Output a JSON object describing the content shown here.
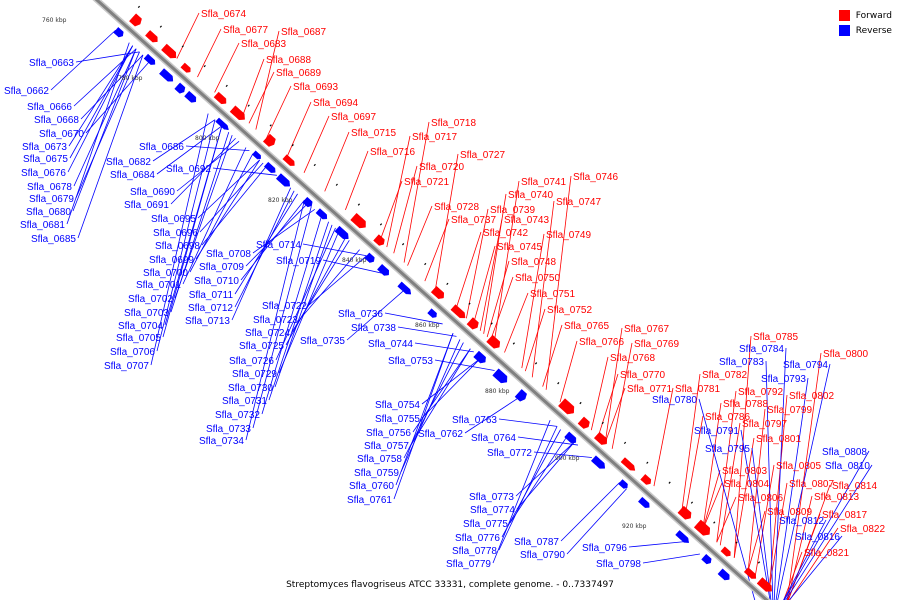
{
  "caption": "Streptomyces flavogriseus ATCC 33331, complete genome. - 0..7337497",
  "legend": [
    {
      "label": "Forward",
      "color": "#ff0000"
    },
    {
      "label": "Reverse",
      "color": "#0000ff"
    }
  ],
  "colors": {
    "forward": "#ff0000",
    "reverse": "#0000ff",
    "backbone": "#808080"
  },
  "ticks": [
    "760 kbp",
    "780 kbp",
    "800 kbp",
    "820 kbp",
    "840 kbp",
    "860 kbp",
    "880 kbp",
    "900 kbp",
    "920 kbp"
  ],
  "forward_labels": [
    "Sfla_0674",
    "Sfla_0677",
    "Sfla_0687",
    "Sfla_0683",
    "Sfla_0688",
    "Sfla_0689",
    "Sfla_0693",
    "Sfla_0694",
    "Sfla_0697",
    "Sfla_0715",
    "Sfla_0718",
    "Sfla_0717",
    "Sfla_0716",
    "Sfla_0727",
    "Sfla_0720",
    "Sfla_0721",
    "Sfla_0746",
    "Sfla_0741",
    "Sfla_0740",
    "Sfla_0747",
    "Sfla_0728",
    "Sfla_0739",
    "Sfla_0737",
    "Sfla_0743",
    "Sfla_0742",
    "Sfla_0749",
    "Sfla_0745",
    "Sfla_0748",
    "Sfla_0750",
    "Sfla_0751",
    "Sfla_0752",
    "Sfla_0765",
    "Sfla_0767",
    "Sfla_0766",
    "Sfla_0769",
    "Sfla_0768",
    "Sfla_0770",
    "Sfla_0771",
    "Sfla_0781",
    "Sfla_0785",
    "Sfla_0782",
    "Sfla_0800",
    "Sfla_0792",
    "Sfla_0788",
    "Sfla_0802",
    "Sfla_0786",
    "Sfla_0799",
    "Sfla_0797",
    "Sfla_0801",
    "Sfla_0805",
    "Sfla_0803",
    "Sfla_0807",
    "Sfla_0814",
    "Sfla_0804",
    "Sfla_0813",
    "Sfla_0806",
    "Sfla_0809",
    "Sfla_0817",
    "Sfla_0822",
    "Sfla_0821"
  ],
  "reverse_labels": [
    "Sfla_0663",
    "Sfla_0662",
    "Sfla_0666",
    "Sfla_0668",
    "Sfla_0670",
    "Sfla_0673",
    "Sfla_0675",
    "Sfla_0676",
    "Sfla_0678",
    "Sfla_0679",
    "Sfla_0680",
    "Sfla_0681",
    "Sfla_0685",
    "Sfla_0686",
    "Sfla_0682",
    "Sfla_0684",
    "Sfla_0692",
    "Sfla_0690",
    "Sfla_0691",
    "Sfla_0695",
    "Sfla_0696",
    "Sfla_0698",
    "Sfla_0699",
    "Sfla_0700",
    "Sfla_0701",
    "Sfla_0702",
    "Sfla_0703",
    "Sfla_0704",
    "Sfla_0705",
    "Sfla_0706",
    "Sfla_0707",
    "Sfla_0708",
    "Sfla_0709",
    "Sfla_0710",
    "Sfla_0711",
    "Sfla_0712",
    "Sfla_0713",
    "Sfla_0714",
    "Sfla_0719",
    "Sfla_0722",
    "Sfla_0723",
    "Sfla_0724",
    "Sfla_0725",
    "Sfla_0726",
    "Sfla_0729",
    "Sfla_0730",
    "Sfla_0731",
    "Sfla_0732",
    "Sfla_0733",
    "Sfla_0734",
    "Sfla_0736",
    "Sfla_0738",
    "Sfla_0735",
    "Sfla_0744",
    "Sfla_0753",
    "Sfla_0754",
    "Sfla_0755",
    "Sfla_0756",
    "Sfla_0757",
    "Sfla_0758",
    "Sfla_0759",
    "Sfla_0760",
    "Sfla_0761",
    "Sfla_0762",
    "Sfla_0763",
    "Sfla_0764",
    "Sfla_0772",
    "Sfla_0773",
    "Sfla_0774",
    "Sfla_0775",
    "Sfla_0776",
    "Sfla_0778",
    "Sfla_0779",
    "Sfla_0787",
    "Sfla_0790",
    "Sfla_0796",
    "Sfla_0798",
    "Sfla_0780",
    "Sfla_0784",
    "Sfla_0783",
    "Sfla_0794",
    "Sfla_0793",
    "Sfla_0791",
    "Sfla_0795",
    "Sfla_0808",
    "Sfla_0810",
    "Sfla_0812",
    "Sfla_0816"
  ]
}
